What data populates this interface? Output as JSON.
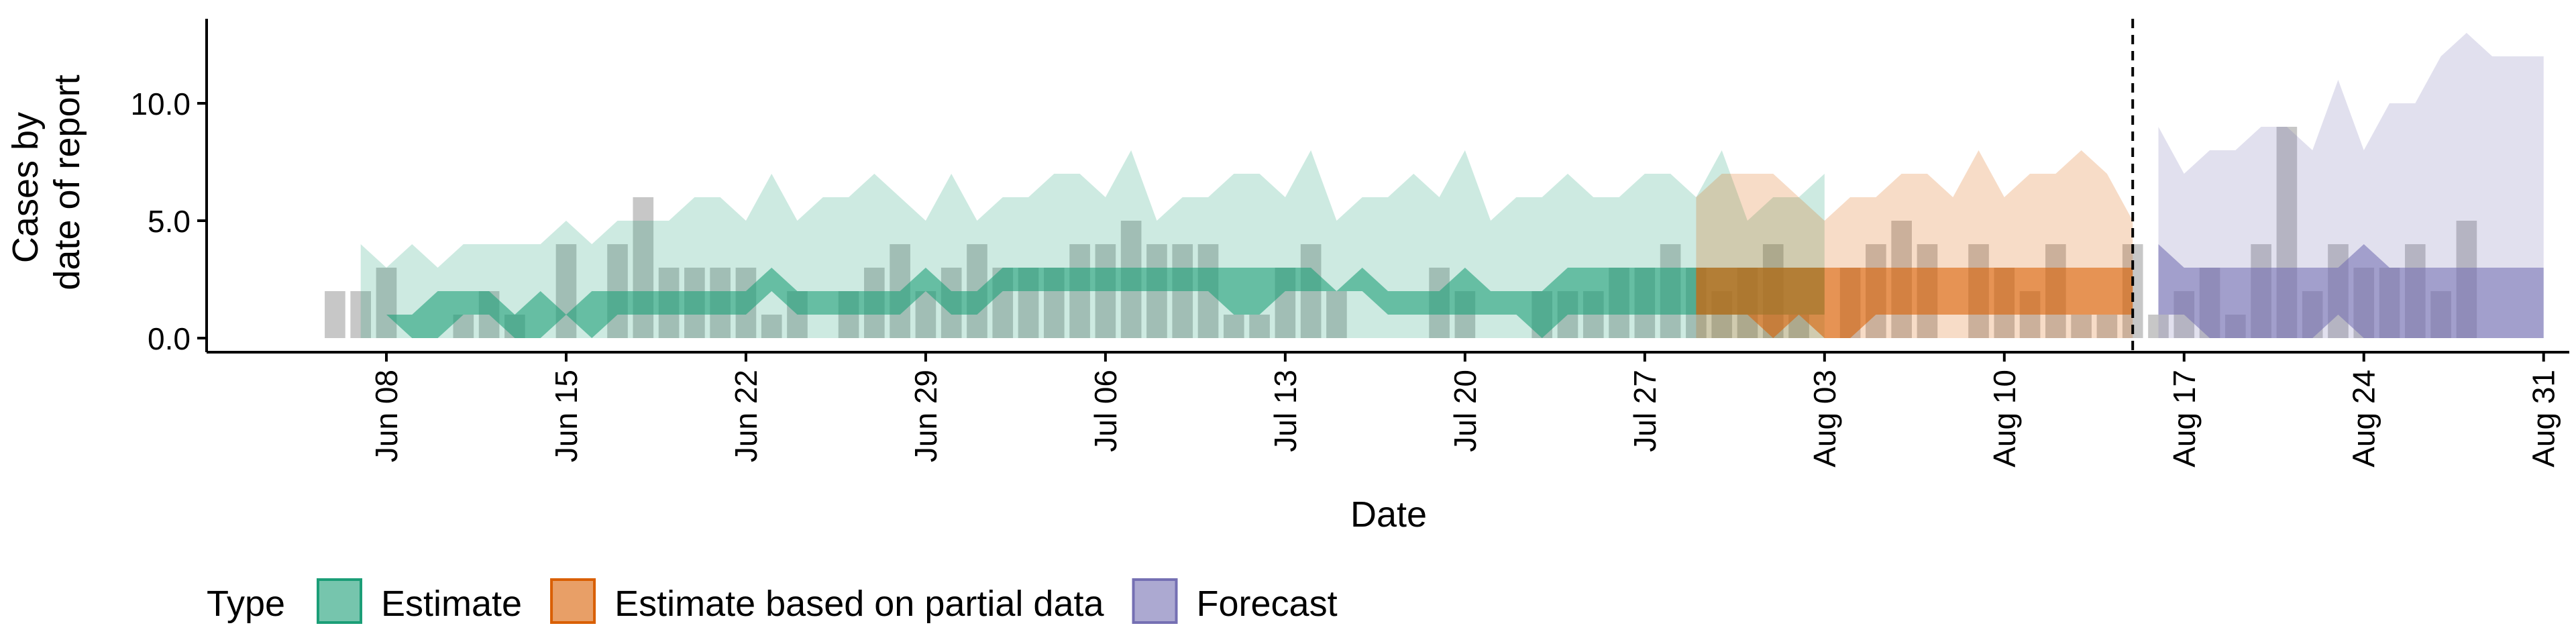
{
  "chart_data": {
    "type": "area",
    "title": "",
    "xlabel": "Date",
    "ylabel_lines": [
      "Cases by",
      "date of report"
    ],
    "ylim": [
      -0.6,
      13.6
    ],
    "xlim": [
      "2020-06-01",
      "2020-09-01"
    ],
    "y_ticks": [
      0,
      5,
      10
    ],
    "y_tick_labels": [
      "0.0",
      "5.0",
      "10.0"
    ],
    "x_ticks": [
      "2020-06-08",
      "2020-06-15",
      "2020-06-22",
      "2020-06-29",
      "2020-07-06",
      "2020-07-13",
      "2020-07-20",
      "2020-07-27",
      "2020-08-03",
      "2020-08-10",
      "2020-08-17",
      "2020-08-24",
      "2020-08-31"
    ],
    "x_tick_labels": [
      "Jun 08",
      "Jun 15",
      "Jun 22",
      "Jun 29",
      "Jul 06",
      "Jul 13",
      "Jul 20",
      "Jul 27",
      "Aug 03",
      "Aug 10",
      "Aug 17",
      "Aug 24",
      "Aug 31"
    ],
    "forecast_cutoff": "2020-08-15",
    "grid": false,
    "legend": {
      "title": "Type",
      "position": "bottom",
      "items": [
        {
          "label": "Estimate",
          "color": "#1B9E77"
        },
        {
          "label": "Estimate based on partial data",
          "color": "#D95F02"
        },
        {
          "label": "Forecast",
          "color": "#7570B3"
        }
      ]
    },
    "bars": {
      "color": "#999999",
      "start": "2020-06-06",
      "values": [
        2,
        2,
        3,
        0,
        0,
        1,
        2,
        1,
        0,
        4,
        0,
        4,
        6,
        3,
        3,
        3,
        3,
        1,
        2,
        0,
        2,
        3,
        4,
        2,
        3,
        4,
        3,
        3,
        3,
        4,
        4,
        5,
        4,
        4,
        4,
        1,
        1,
        3,
        4,
        2,
        0,
        0,
        0,
        3,
        2,
        0,
        0,
        2,
        2,
        2,
        3,
        3,
        4,
        3,
        2,
        3,
        4,
        1,
        0,
        3,
        4,
        5,
        4,
        0,
        4,
        3,
        2,
        4,
        1,
        1,
        4,
        1,
        2,
        3,
        1,
        4,
        9,
        2,
        4,
        3,
        3,
        4,
        2,
        5
      ]
    },
    "series": [
      {
        "name": "Estimate",
        "start": "2020-06-07",
        "inner_lower": [
          1,
          1,
          0,
          0,
          1,
          1,
          0,
          0,
          1,
          0,
          1,
          1,
          1,
          1,
          1,
          1,
          2,
          1,
          1,
          1,
          1,
          1,
          2,
          1,
          1,
          2,
          2,
          2,
          2,
          2,
          2,
          2,
          2,
          2,
          1,
          1,
          2,
          2,
          2,
          2,
          1,
          1,
          1,
          1,
          1,
          1,
          0,
          1,
          1,
          1,
          1,
          1,
          1,
          1,
          1,
          1,
          1,
          1
        ],
        "inner_upper": [
          1,
          1,
          1,
          2,
          2,
          2,
          1,
          2,
          1,
          2,
          2,
          2,
          2,
          2,
          2,
          2,
          3,
          2,
          2,
          2,
          2,
          2,
          3,
          2,
          2,
          3,
          3,
          3,
          3,
          3,
          3,
          3,
          3,
          3,
          3,
          3,
          3,
          3,
          2,
          3,
          2,
          2,
          2,
          3,
          2,
          2,
          2,
          3,
          3,
          3,
          3,
          3,
          3,
          3,
          3,
          3,
          3,
          3
        ],
        "outer_lower": [
          0,
          0,
          0,
          0,
          0,
          0,
          0,
          0,
          0,
          0,
          0,
          0,
          0,
          0,
          0,
          0,
          0,
          0,
          0,
          0,
          0,
          0,
          0,
          0,
          0,
          0,
          0,
          0,
          0,
          0,
          0,
          0,
          0,
          0,
          0,
          0,
          0,
          0,
          0,
          0,
          0,
          0,
          0,
          0,
          0,
          0,
          0,
          0,
          0,
          0,
          0,
          0,
          0,
          0,
          0,
          0,
          0,
          0
        ],
        "outer_upper": [
          4,
          3,
          4,
          3,
          4,
          4,
          4,
          4,
          5,
          4,
          5,
          5,
          5,
          6,
          6,
          5,
          7,
          5,
          6,
          6,
          7,
          6,
          5,
          7,
          5,
          6,
          6,
          7,
          7,
          6,
          8,
          5,
          6,
          6,
          7,
          7,
          6,
          8,
          5,
          6,
          6,
          7,
          6,
          8,
          5,
          6,
          6,
          7,
          6,
          6,
          7,
          7,
          6,
          8,
          5,
          6,
          6,
          7
        ]
      },
      {
        "name": "Estimate based on partial data",
        "start": "2020-07-29",
        "inner_lower": [
          1,
          1,
          1,
          0,
          1,
          0,
          0,
          1,
          1,
          1,
          1,
          1,
          1,
          1,
          1,
          1,
          1,
          1
        ],
        "inner_upper": [
          3,
          3,
          3,
          3,
          3,
          3,
          3,
          3,
          3,
          3,
          3,
          3,
          3,
          3,
          3,
          3,
          3,
          3
        ],
        "outer_lower": [
          0,
          0,
          0,
          0,
          0,
          0,
          0,
          0,
          0,
          0,
          0,
          0,
          0,
          0,
          0,
          0,
          0,
          0
        ],
        "outer_upper": [
          6,
          7,
          7,
          7,
          6,
          5,
          6,
          6,
          7,
          7,
          6,
          8,
          6,
          7,
          7,
          8,
          7,
          5
        ]
      },
      {
        "name": "Forecast",
        "start": "2020-08-16",
        "inner_lower": [
          1,
          1,
          0,
          0,
          0,
          0,
          0,
          1,
          0,
          0,
          0,
          0,
          0,
          0,
          0,
          0
        ],
        "inner_upper": [
          4,
          3,
          3,
          3,
          3,
          3,
          3,
          3,
          4,
          3,
          3,
          3,
          3,
          3,
          3,
          3
        ],
        "outer_lower": [
          0,
          0,
          0,
          0,
          0,
          0,
          0,
          0,
          0,
          0,
          0,
          0,
          0,
          0,
          0,
          0
        ],
        "outer_upper": [
          9,
          7,
          8,
          8,
          9,
          9,
          8,
          11,
          8,
          10,
          10,
          12,
          13,
          12,
          12,
          12
        ]
      }
    ]
  }
}
